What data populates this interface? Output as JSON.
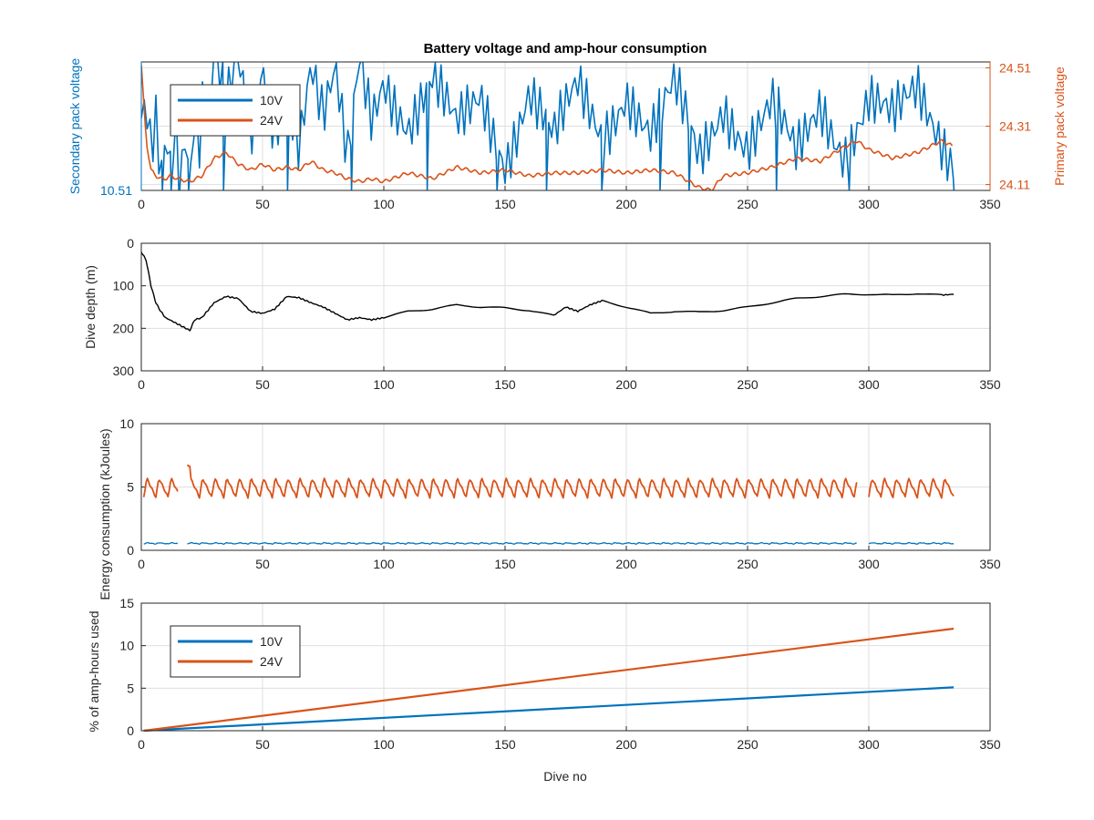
{
  "figure": {
    "title": "Battery voltage and amp-hour consumption",
    "xlabel": "Dive no"
  },
  "colors": {
    "series_10v": "#0072BD",
    "series_24v": "#D95319",
    "depth_line": "#000000",
    "axis": "#262626",
    "grid": "#dfdfdf"
  },
  "chart_data": [
    {
      "type": "line",
      "id": "voltage",
      "title": "Battery voltage and amp-hour consumption",
      "xlabel": "",
      "ylabel_left": "Secondary pack voltage",
      "ylabel_right": "Primary pack voltage",
      "xlim": [
        0,
        350
      ],
      "x_ticks": [
        0,
        50,
        100,
        150,
        200,
        250,
        300,
        350
      ],
      "ylim_left": [
        10.51,
        10.542
      ],
      "y_ticks_left": [
        10.51
      ],
      "ylim_right": [
        24.09,
        24.53
      ],
      "y_ticks_right": [
        24.11,
        24.31,
        24.51
      ],
      "grid": true,
      "legend": {
        "position": "top-left",
        "entries": [
          "10V",
          "24V"
        ]
      },
      "series": [
        {
          "name": "10V",
          "axis": "left",
          "x": [
            0,
            2,
            4,
            6,
            8,
            10,
            12,
            14,
            16,
            18,
            20,
            22,
            24,
            26,
            28,
            30,
            35,
            40,
            45,
            50,
            55,
            60,
            65,
            70,
            75,
            80,
            85,
            90,
            95,
            100,
            110,
            120,
            130,
            140,
            150,
            160,
            170,
            180,
            190,
            200,
            210,
            220,
            230,
            240,
            250,
            260,
            270,
            280,
            290,
            300,
            310,
            320,
            330,
            335
          ],
          "y": [
            10.528,
            10.533,
            10.522,
            10.531,
            10.516,
            10.528,
            10.52,
            10.531,
            10.513,
            10.526,
            10.514,
            10.53,
            10.521,
            10.536,
            10.524,
            10.542,
            10.529,
            10.541,
            10.522,
            10.542,
            10.527,
            10.538,
            10.523,
            10.541,
            10.526,
            10.537,
            10.515,
            10.542,
            10.529,
            10.54,
            10.527,
            10.536,
            10.524,
            10.534,
            10.519,
            10.535,
            10.521,
            10.535,
            10.525,
            10.536,
            10.523,
            10.534,
            10.518,
            10.533,
            10.522,
            10.53,
            10.517,
            10.532,
            10.521,
            10.533,
            10.526,
            10.534,
            10.524,
            10.519
          ],
          "dips_x": [
            8,
            12,
            19,
            33,
            60,
            86,
            118,
            147,
            167,
            190,
            213,
            226,
            262,
            292,
            335
          ],
          "dip_min": 10.51
        },
        {
          "name": "24V",
          "axis": "right",
          "x": [
            0,
            2,
            4,
            6,
            8,
            10,
            12,
            15,
            20,
            25,
            30,
            35,
            40,
            45,
            50,
            55,
            60,
            65,
            70,
            75,
            80,
            85,
            90,
            95,
            100,
            110,
            120,
            130,
            140,
            150,
            160,
            170,
            180,
            190,
            200,
            210,
            220,
            230,
            235,
            240,
            250,
            260,
            270,
            280,
            290,
            295,
            300,
            310,
            320,
            330,
            335
          ],
          "y": [
            24.52,
            24.26,
            24.16,
            24.14,
            24.13,
            24.13,
            24.14,
            24.13,
            24.12,
            24.14,
            24.2,
            24.22,
            24.18,
            24.16,
            24.18,
            24.16,
            24.17,
            24.16,
            24.19,
            24.16,
            24.15,
            24.13,
            24.12,
            24.13,
            24.12,
            24.15,
            24.13,
            24.17,
            24.15,
            24.16,
            24.14,
            24.15,
            24.15,
            24.16,
            24.15,
            24.16,
            24.15,
            24.1,
            24.09,
            24.14,
            24.15,
            24.17,
            24.2,
            24.19,
            24.24,
            24.26,
            24.23,
            24.2,
            24.22,
            24.26,
            24.24
          ]
        }
      ]
    },
    {
      "type": "line",
      "id": "depth",
      "xlabel": "",
      "ylabel": "Dive depth (m)",
      "xlim": [
        0,
        350
      ],
      "x_ticks": [
        0,
        50,
        100,
        150,
        200,
        250,
        300,
        350
      ],
      "ylim": [
        0,
        300
      ],
      "y_reversed": true,
      "y_ticks": [
        0,
        100,
        200,
        300
      ],
      "grid": true,
      "series": [
        {
          "x": [
            0,
            2,
            4,
            6,
            8,
            10,
            15,
            20,
            22,
            25,
            30,
            35,
            40,
            45,
            50,
            55,
            60,
            65,
            70,
            75,
            80,
            85,
            90,
            95,
            100,
            110,
            120,
            130,
            140,
            150,
            160,
            170,
            175,
            180,
            185,
            190,
            200,
            210,
            220,
            230,
            240,
            250,
            260,
            270,
            280,
            290,
            300,
            310,
            320,
            330,
            335
          ],
          "y": [
            20,
            40,
            100,
            140,
            160,
            175,
            190,
            205,
            180,
            175,
            140,
            125,
            130,
            160,
            165,
            155,
            125,
            128,
            140,
            150,
            165,
            180,
            175,
            180,
            175,
            160,
            155,
            145,
            150,
            152,
            158,
            170,
            150,
            160,
            145,
            135,
            150,
            165,
            160,
            162,
            158,
            150,
            140,
            130,
            125,
            120,
            120,
            122,
            118,
            122,
            120
          ]
        }
      ]
    },
    {
      "type": "line",
      "id": "energy",
      "xlabel": "",
      "ylabel": "Energy consumption (kJoules)",
      "xlim": [
        0,
        350
      ],
      "x_ticks": [
        0,
        50,
        100,
        150,
        200,
        250,
        300,
        350
      ],
      "ylim": [
        0,
        10
      ],
      "y_ticks": [
        0,
        5,
        10
      ],
      "grid": true,
      "series": [
        {
          "name": "10V",
          "x_ranges": [
            [
              1,
              15
            ],
            [
              19,
              295
            ],
            [
              300,
              335
            ]
          ],
          "base": 0.5,
          "peak": 0.6,
          "period": 5
        },
        {
          "name": "24V",
          "x_ranges": [
            [
              1,
              15
            ],
            [
              19,
              295
            ],
            [
              300,
              335
            ]
          ],
          "base": 4.2,
          "peak": 5.7,
          "period": 5,
          "first_peak": 6.7
        }
      ]
    },
    {
      "type": "line",
      "id": "amphours",
      "xlabel": "Dive no",
      "ylabel": "% of amp-hours used",
      "xlim": [
        0,
        350
      ],
      "x_ticks": [
        0,
        50,
        100,
        150,
        200,
        250,
        300,
        350
      ],
      "ylim": [
        0,
        15
      ],
      "y_ticks": [
        0,
        5,
        10,
        15
      ],
      "grid": true,
      "legend": {
        "position": "top-left",
        "entries": [
          "10V",
          "24V"
        ]
      },
      "series": [
        {
          "name": "10V",
          "x": [
            1,
            335
          ],
          "y": [
            0,
            5.1
          ]
        },
        {
          "name": "24V",
          "x": [
            1,
            335
          ],
          "y": [
            0,
            12.0
          ]
        }
      ]
    }
  ]
}
